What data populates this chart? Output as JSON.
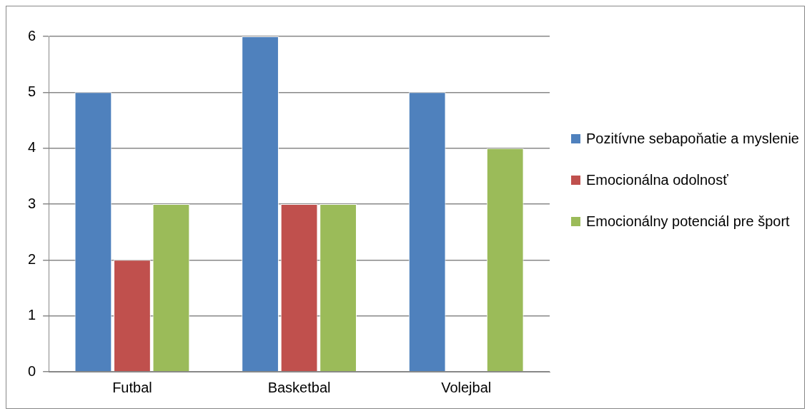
{
  "chart_data": {
    "type": "bar",
    "categories": [
      "Futbal",
      "Basketbal",
      "Volejbal"
    ],
    "series": [
      {
        "name": "Pozitívne sebapoňatie a myslenie",
        "color": "#4f81bd",
        "values": [
          5,
          6,
          5
        ]
      },
      {
        "name": "Emocionálna odolnosť",
        "color": "#c0504d",
        "values": [
          2,
          3,
          0
        ]
      },
      {
        "name": "Emocionálny potenciál pre šport",
        "color": "#9bbb59",
        "values": [
          3,
          3,
          4
        ]
      }
    ],
    "ylim": [
      0,
      6
    ],
    "yticks": [
      0,
      1,
      2,
      3,
      4,
      5,
      6
    ],
    "grid": "y",
    "legend": "right"
  }
}
